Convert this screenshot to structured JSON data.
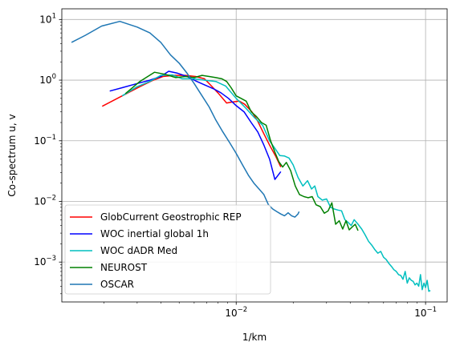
{
  "chart_data": {
    "type": "line",
    "xlabel": "1/km",
    "ylabel": "Co-spectrum u, v",
    "xscale": "log",
    "yscale": "log",
    "xlim": [
      0.0012,
      0.13
    ],
    "ylim": [
      0.00022,
      15
    ],
    "grid": true,
    "legend_position": "lower-left",
    "x_ticks": [
      {
        "value": 0.01,
        "base": "10",
        "exp": "−2"
      },
      {
        "value": 0.1,
        "base": "10",
        "exp": "−1"
      }
    ],
    "y_ticks": [
      {
        "value": 10,
        "base": "10",
        "exp": "1"
      },
      {
        "value": 1,
        "base": "10",
        "exp": "0"
      },
      {
        "value": 0.1,
        "base": "10",
        "exp": "−1"
      },
      {
        "value": 0.01,
        "base": "10",
        "exp": "−2"
      },
      {
        "value": 0.001,
        "base": "10",
        "exp": "−3"
      }
    ],
    "series": [
      {
        "name": "GlobCurrent Geostrophic REP",
        "color": "#ff0000",
        "x": [
          0.00196,
          0.0025,
          0.0031,
          0.0036,
          0.0041,
          0.0047,
          0.0054,
          0.0061,
          0.0068,
          0.0074,
          0.008,
          0.0089,
          0.0093,
          0.0098,
          0.0104,
          0.0111,
          0.0121,
          0.013,
          0.014,
          0.0151,
          0.0162,
          0.0172
        ],
        "y": [
          0.37,
          0.55,
          0.78,
          0.98,
          1.15,
          1.2,
          1.2,
          1.15,
          1.05,
          0.8,
          0.62,
          0.42,
          0.43,
          0.44,
          0.45,
          0.4,
          0.3,
          0.21,
          0.13,
          0.082,
          0.055,
          0.037
        ]
      },
      {
        "name": "WOC inertial global 1h",
        "color": "#0000ff",
        "x": [
          0.00215,
          0.0025,
          0.003,
          0.0035,
          0.004,
          0.0044,
          0.0049,
          0.0055,
          0.0062,
          0.0069,
          0.0076,
          0.0083,
          0.0091,
          0.01,
          0.011,
          0.012,
          0.013,
          0.014,
          0.015,
          0.016,
          0.0172
        ],
        "y": [
          0.66,
          0.75,
          0.88,
          1.0,
          1.15,
          1.4,
          1.3,
          1.15,
          0.95,
          0.82,
          0.72,
          0.62,
          0.5,
          0.38,
          0.3,
          0.2,
          0.14,
          0.085,
          0.05,
          0.023,
          0.031
        ]
      },
      {
        "name": "WOC dADR Med",
        "color": "#00bfbf",
        "x": [
          0.0025,
          0.003,
          0.0035,
          0.004,
          0.0046,
          0.0052,
          0.006,
          0.0068,
          0.0078,
          0.0088,
          0.01,
          0.0112,
          0.0125,
          0.0138,
          0.015,
          0.016,
          0.017,
          0.018,
          0.019,
          0.02,
          0.0212,
          0.0225,
          0.0238,
          0.025,
          0.026,
          0.027,
          0.0285,
          0.03,
          0.0315,
          0.033,
          0.0345,
          0.036,
          0.0375,
          0.039,
          0.0405,
          0.042,
          0.044,
          0.046,
          0.048,
          0.05,
          0.052,
          0.054,
          0.056,
          0.058,
          0.06,
          0.062,
          0.064,
          0.066,
          0.068,
          0.07,
          0.072,
          0.074,
          0.076,
          0.078,
          0.08,
          0.082,
          0.084,
          0.086,
          0.088,
          0.09,
          0.092,
          0.094,
          0.096,
          0.098,
          0.1,
          0.102,
          0.104,
          0.106
        ],
        "y": [
          0.55,
          0.78,
          0.95,
          1.2,
          1.22,
          1.05,
          1.05,
          1.0,
          0.95,
          0.8,
          0.5,
          0.35,
          0.24,
          0.18,
          0.1,
          0.075,
          0.057,
          0.056,
          0.052,
          0.04,
          0.025,
          0.018,
          0.022,
          0.016,
          0.018,
          0.012,
          0.0105,
          0.011,
          0.008,
          0.0075,
          0.0072,
          0.007,
          0.005,
          0.0045,
          0.004,
          0.005,
          0.0042,
          0.0035,
          0.0028,
          0.0022,
          0.0019,
          0.0016,
          0.0014,
          0.0015,
          0.0012,
          0.0011,
          0.00095,
          0.00085,
          0.00075,
          0.0007,
          0.00062,
          0.0006,
          0.00052,
          0.0007,
          0.00045,
          0.00055,
          0.0005,
          0.00048,
          0.00042,
          0.00045,
          0.0004,
          0.00062,
          0.00035,
          0.00045,
          0.00038,
          0.0005,
          0.00033,
          0.00034
        ]
      },
      {
        "name": "NEUROST",
        "color": "#008000",
        "x": [
          0.0026,
          0.0031,
          0.0037,
          0.0042,
          0.0048,
          0.0054,
          0.006,
          0.0066,
          0.0072,
          0.0078,
          0.0084,
          0.0089,
          0.0094,
          0.01,
          0.0106,
          0.0113,
          0.012,
          0.0128,
          0.0136,
          0.0144,
          0.0152,
          0.016,
          0.0168,
          0.0176,
          0.0184,
          0.0194,
          0.0205,
          0.0216,
          0.0228,
          0.024,
          0.0252,
          0.0264,
          0.0278,
          0.0292,
          0.0306,
          0.032,
          0.0335,
          0.035,
          0.0365,
          0.038,
          0.0395,
          0.041,
          0.0425,
          0.044
        ],
        "y": [
          0.6,
          0.95,
          1.35,
          1.25,
          1.1,
          1.15,
          1.1,
          1.2,
          1.15,
          1.1,
          1.05,
          0.95,
          0.75,
          0.55,
          0.5,
          0.45,
          0.3,
          0.25,
          0.2,
          0.18,
          0.1,
          0.065,
          0.045,
          0.037,
          0.044,
          0.032,
          0.018,
          0.013,
          0.012,
          0.0115,
          0.012,
          0.0088,
          0.0082,
          0.0064,
          0.007,
          0.0095,
          0.0042,
          0.0048,
          0.0035,
          0.0048,
          0.0034,
          0.0038,
          0.0042,
          0.0033
        ]
      },
      {
        "name": "OSCAR",
        "color": "#1f77b4",
        "x": [
          0.00135,
          0.0016,
          0.00195,
          0.00243,
          0.003,
          0.0035,
          0.004,
          0.0045,
          0.005,
          0.0055,
          0.006,
          0.0066,
          0.0072,
          0.0078,
          0.0085,
          0.0092,
          0.01,
          0.0108,
          0.0116,
          0.0124,
          0.0132,
          0.014,
          0.0148,
          0.0156,
          0.0164,
          0.0172,
          0.018,
          0.0188,
          0.0196,
          0.0204,
          0.0212,
          0.0215
        ],
        "y": [
          4.2,
          5.5,
          7.8,
          9.3,
          7.5,
          6.0,
          4.2,
          2.6,
          1.9,
          1.3,
          0.88,
          0.55,
          0.36,
          0.22,
          0.14,
          0.095,
          0.062,
          0.04,
          0.027,
          0.02,
          0.016,
          0.013,
          0.0088,
          0.0075,
          0.0068,
          0.0062,
          0.0058,
          0.0065,
          0.0058,
          0.0055,
          0.0062,
          0.0068
        ]
      }
    ]
  }
}
